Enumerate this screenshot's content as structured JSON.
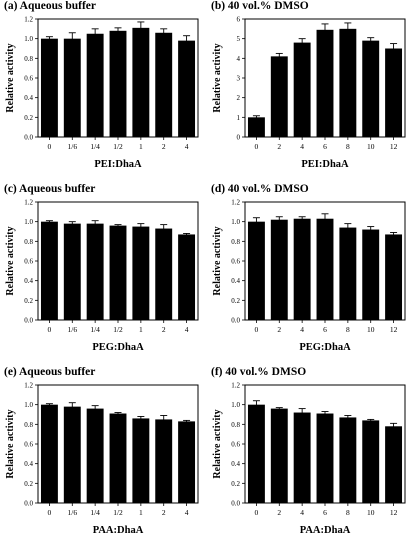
{
  "chart_data": [
    {
      "type": "bar",
      "title": "(a) Aqueous buffer",
      "xlabel": "PEI:DhaA",
      "ylabel": "Relative activity",
      "categories": [
        "0",
        "1/6",
        "1/4",
        "1/2",
        "1",
        "2",
        "4"
      ],
      "values": [
        1.0,
        1.0,
        1.05,
        1.08,
        1.11,
        1.06,
        0.98
      ],
      "errors": [
        0.02,
        0.06,
        0.05,
        0.03,
        0.06,
        0.04,
        0.05
      ],
      "ylim": [
        0,
        1.2
      ],
      "yticks": [
        "0.0",
        "0.2",
        "0.4",
        "0.6",
        "0.8",
        "1.0",
        "1.2"
      ]
    },
    {
      "type": "bar",
      "title": "(b) 40 vol.% DMSO",
      "xlabel": "PEI:DhaA",
      "ylabel": "Relative activity",
      "categories": [
        "0",
        "2",
        "4",
        "6",
        "8",
        "10",
        "12"
      ],
      "values": [
        1.0,
        4.1,
        4.8,
        5.45,
        5.5,
        4.9,
        4.5
      ],
      "errors": [
        0.08,
        0.15,
        0.2,
        0.3,
        0.3,
        0.15,
        0.25
      ],
      "ylim": [
        0,
        6
      ],
      "yticks": [
        "0",
        "1",
        "2",
        "3",
        "4",
        "5",
        "6"
      ]
    },
    {
      "type": "bar",
      "title": "(c) Aqueous buffer",
      "xlabel": "PEG:DhaA",
      "ylabel": "Relative activity",
      "categories": [
        "0",
        "1/6",
        "1/4",
        "1/2",
        "1",
        "2",
        "4"
      ],
      "values": [
        1.0,
        0.98,
        0.98,
        0.96,
        0.95,
        0.93,
        0.87
      ],
      "errors": [
        0.01,
        0.02,
        0.03,
        0.01,
        0.03,
        0.04,
        0.01
      ],
      "ylim": [
        0,
        1.2
      ],
      "yticks": [
        "0.0",
        "0.2",
        "0.4",
        "0.6",
        "0.8",
        "1.0",
        "1.2"
      ]
    },
    {
      "type": "bar",
      "title": "(d) 40 vol.% DMSO",
      "xlabel": "PEG:DhaA",
      "ylabel": "Relative activity",
      "categories": [
        "0",
        "2",
        "4",
        "6",
        "8",
        "10",
        "12"
      ],
      "values": [
        1.0,
        1.02,
        1.03,
        1.03,
        0.94,
        0.92,
        0.87
      ],
      "errors": [
        0.04,
        0.03,
        0.02,
        0.05,
        0.04,
        0.03,
        0.02
      ],
      "ylim": [
        0,
        1.2
      ],
      "yticks": [
        "0.0",
        "0.2",
        "0.4",
        "0.6",
        "0.8",
        "1.0",
        "1.2"
      ]
    },
    {
      "type": "bar",
      "title": "(e) Aqueous buffer",
      "xlabel": "PAA:DhaA",
      "ylabel": "Relative activity",
      "categories": [
        "0",
        "1/6",
        "1/4",
        "1/2",
        "1",
        "2",
        "4"
      ],
      "values": [
        1.0,
        0.98,
        0.96,
        0.91,
        0.86,
        0.85,
        0.83
      ],
      "errors": [
        0.01,
        0.04,
        0.03,
        0.01,
        0.02,
        0.04,
        0.01
      ],
      "ylim": [
        0,
        1.2
      ],
      "yticks": [
        "0.0",
        "0.2",
        "0.4",
        "0.6",
        "0.8",
        "1.0",
        "1.2"
      ]
    },
    {
      "type": "bar",
      "title": "(f) 40 vol.% DMSO",
      "xlabel": "PAA:DhaA",
      "ylabel": "Relative activity",
      "categories": [
        "0",
        "2",
        "4",
        "6",
        "8",
        "10",
        "12"
      ],
      "values": [
        1.0,
        0.96,
        0.92,
        0.91,
        0.87,
        0.84,
        0.78
      ],
      "errors": [
        0.04,
        0.01,
        0.04,
        0.02,
        0.02,
        0.01,
        0.03
      ],
      "ylim": [
        0,
        1.2
      ],
      "yticks": [
        "0.0",
        "0.2",
        "0.4",
        "0.6",
        "0.8",
        "1.0",
        "1.2"
      ]
    }
  ]
}
